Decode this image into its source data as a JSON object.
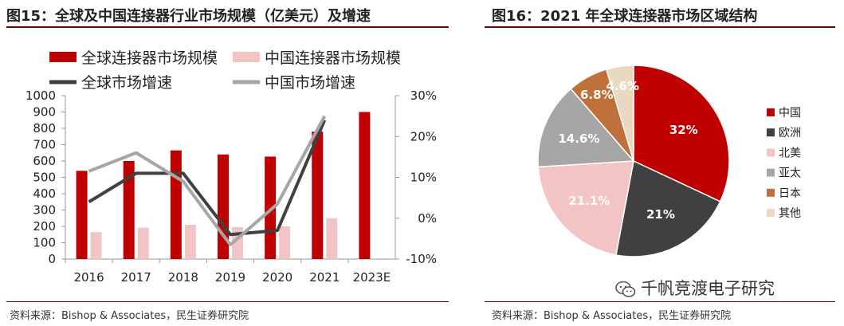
{
  "left": {
    "title": "图15：全球及中国连接器行业市场规模（亿美元）及增速",
    "source": "资料来源：Bishop & Associates，民生证券研究院"
  },
  "right": {
    "title": "图16：2021 年全球连接器市场区域结构",
    "source": "资料来源：Bishop & Associates，民生证券研究院"
  },
  "watermark": "千帆竞渡电子研究",
  "colors": {
    "dark_red": "#c00000",
    "pink": "#f2c4c4",
    "dark_line": "#404040",
    "gray_line": "#a6a6a6",
    "rule": "#7a0000"
  },
  "chart_data": [
    {
      "type": "bar",
      "categories": [
        "2016",
        "2017",
        "2018",
        "2019",
        "2020",
        "2021",
        "2023E"
      ],
      "series": [
        {
          "name": "全球连接器市场规模",
          "kind": "bar",
          "axis": "left",
          "color": "#c00000",
          "values": [
            540,
            600,
            665,
            640,
            627,
            780,
            900
          ]
        },
        {
          "name": "中国连接器市场规模",
          "kind": "bar",
          "axis": "left",
          "color": "#f2c4c4",
          "values": [
            165,
            192,
            210,
            195,
            200,
            250,
            null
          ]
        },
        {
          "name": "全球市场增速",
          "kind": "line",
          "axis": "right",
          "color": "#404040",
          "values": [
            4,
            11,
            11,
            -4,
            -3,
            24,
            null
          ]
        },
        {
          "name": "中国市场增速",
          "kind": "line",
          "axis": "right",
          "color": "#a6a6a6",
          "values": [
            11.5,
            16,
            9,
            -6.5,
            3.5,
            25,
            null
          ]
        }
      ],
      "ylim": [
        0,
        1000
      ],
      "yticks": [
        "0",
        "100",
        "200",
        "300",
        "400",
        "500",
        "600",
        "700",
        "800",
        "900",
        "1000"
      ],
      "y2lim": [
        -10,
        30
      ],
      "y2ticks": [
        "-10%",
        "0%",
        "10%",
        "20%",
        "30%"
      ],
      "legend": [
        "全球连接器市场规模",
        "中国连接器市场规模",
        "全球市场增速",
        "中国市场增速"
      ]
    },
    {
      "type": "pie",
      "slices": [
        {
          "label": "中国",
          "value": 32,
          "display": "32%",
          "color": "#c00000"
        },
        {
          "label": "欧洲",
          "value": 21,
          "display": "21%",
          "color": "#404040"
        },
        {
          "label": "北美",
          "value": 21.1,
          "display": "21.1%",
          "color": "#f2c4c4"
        },
        {
          "label": "亚太",
          "value": 14.6,
          "display": "14.6%",
          "color": "#a6a6a6"
        },
        {
          "label": "日本",
          "value": 6.8,
          "display": "6.8%",
          "color": "#c0703a"
        },
        {
          "label": "其他",
          "value": 4.6,
          "display": "4.6%",
          "color": "#ead9c0"
        }
      ]
    }
  ]
}
